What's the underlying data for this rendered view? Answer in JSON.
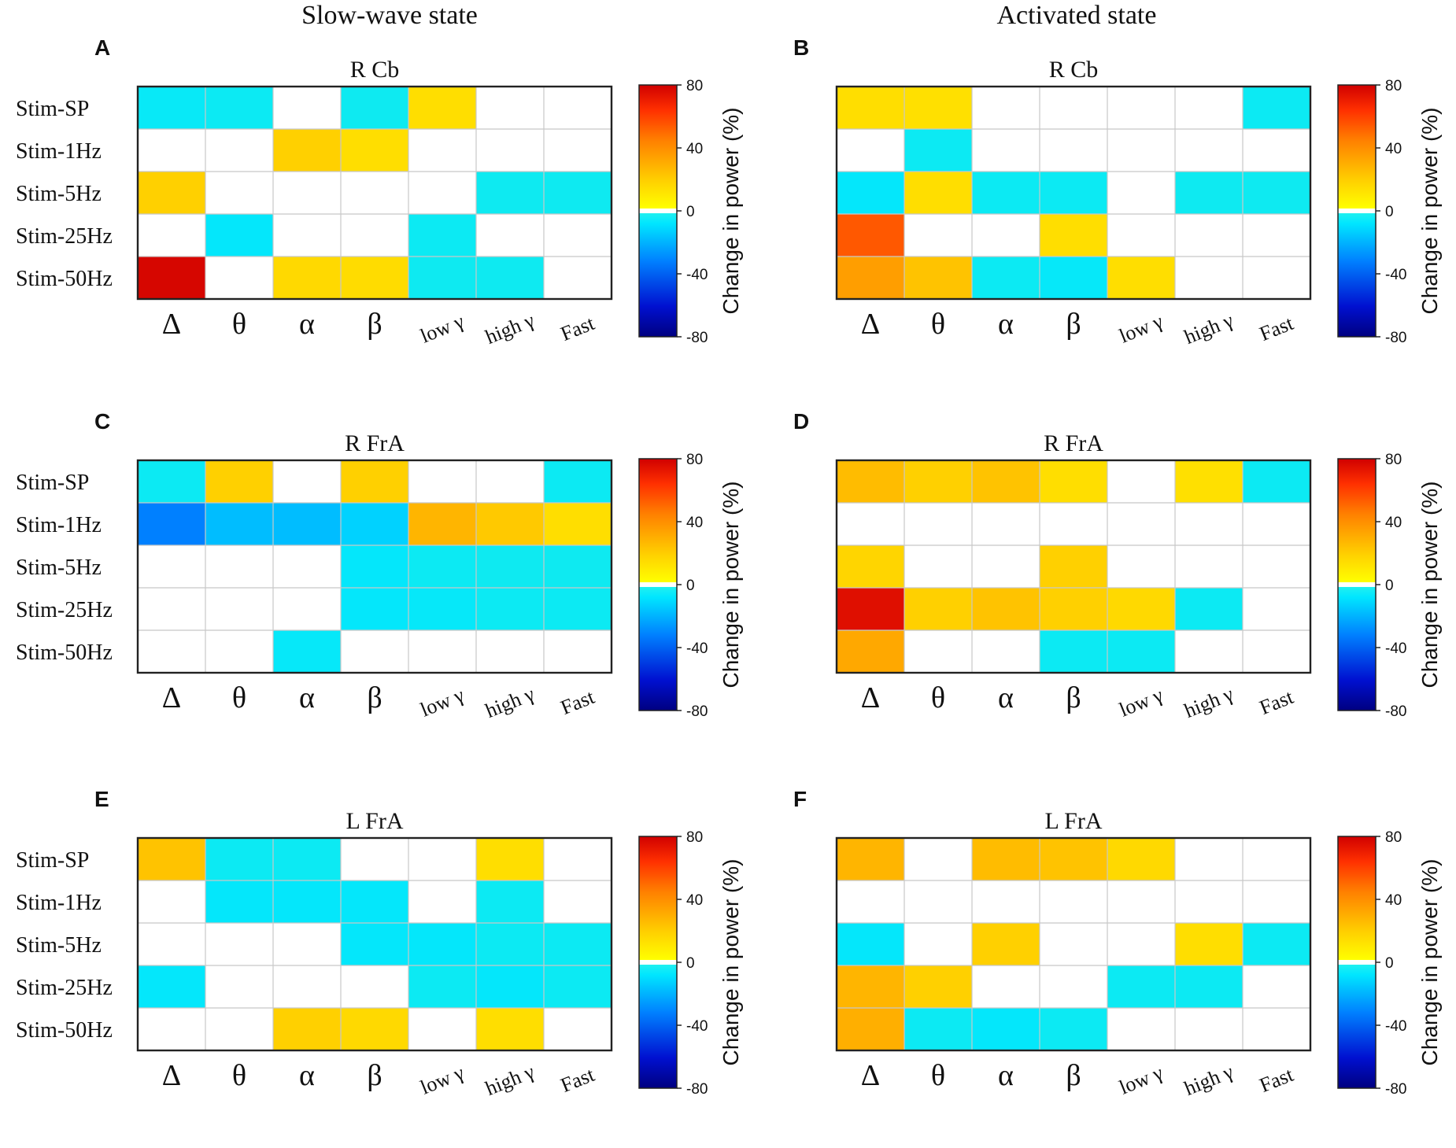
{
  "figure": {
    "state_titles": [
      "Slow-wave state",
      "Activated state"
    ]
  },
  "colorbar": {
    "label": "Change in power (%)",
    "ticks": [
      "80",
      "40",
      "0",
      "-40",
      "-80"
    ],
    "range": [
      -80,
      80
    ]
  },
  "colors": {
    "white": "#ffffff",
    "frame": "#222222",
    "grid": "#c8c8c8"
  },
  "chart_data": [
    {
      "type": "heatmap",
      "panel": "A",
      "state": "Slow-wave state",
      "title": "R Cb",
      "rows": [
        "Stim-SP",
        "Stim-1Hz",
        "Stim-5Hz",
        "Stim-25Hz",
        "Stim-50Hz"
      ],
      "columns": [
        "Δ",
        "θ",
        "α",
        "β",
        "low γ",
        "high γ",
        "Fast"
      ],
      "colorbar_label": "Change in power (%)",
      "colorbar_range": [
        -80,
        80
      ],
      "values": [
        [
          -12,
          -10,
          null,
          -9,
          14,
          null,
          null
        ],
        [
          null,
          null,
          20,
          14,
          null,
          null,
          null
        ],
        [
          20,
          null,
          null,
          null,
          null,
          -9,
          -9
        ],
        [
          null,
          -14,
          null,
          null,
          -10,
          null,
          null
        ],
        [
          78,
          null,
          16,
          15,
          -9,
          -9,
          null
        ]
      ]
    },
    {
      "type": "heatmap",
      "panel": "B",
      "state": "Activated state",
      "title": "R Cb",
      "rows": [
        "Stim-SP",
        "Stim-1Hz",
        "Stim-5Hz",
        "Stim-25Hz",
        "Stim-50Hz"
      ],
      "columns": [
        "Δ",
        "θ",
        "α",
        "β",
        "low γ",
        "high γ",
        "Fast"
      ],
      "colorbar_label": "Change in power (%)",
      "colorbar_range": [
        -80,
        80
      ],
      "values": [
        [
          14,
          13,
          null,
          null,
          null,
          null,
          -10
        ],
        [
          null,
          -10,
          null,
          null,
          null,
          null,
          null
        ],
        [
          -14,
          14,
          -10,
          -10,
          null,
          -9,
          -9
        ],
        [
          54,
          null,
          null,
          14,
          null,
          null,
          null
        ],
        [
          35,
          24,
          -10,
          -13,
          14,
          null,
          null
        ]
      ]
    },
    {
      "type": "heatmap",
      "panel": "C",
      "state": "Slow-wave state",
      "title": "R FrA",
      "rows": [
        "Stim-SP",
        "Stim-1Hz",
        "Stim-5Hz",
        "Stim-25Hz",
        "Stim-50Hz"
      ],
      "columns": [
        "Δ",
        "θ",
        "α",
        "β",
        "low γ",
        "high γ",
        "Fast"
      ],
      "colorbar_label": "Change in power (%)",
      "colorbar_range": [
        -80,
        80
      ],
      "values": [
        [
          -10,
          20,
          null,
          20,
          null,
          null,
          -10
        ],
        [
          -36,
          -24,
          -24,
          -20,
          28,
          22,
          14
        ],
        [
          null,
          null,
          null,
          -14,
          -10,
          -9,
          -9
        ],
        [
          null,
          null,
          null,
          -14,
          -13,
          -10,
          -10
        ],
        [
          null,
          null,
          -13,
          null,
          null,
          null,
          null
        ]
      ]
    },
    {
      "type": "heatmap",
      "panel": "D",
      "state": "Activated state",
      "title": "R FrA",
      "rows": [
        "Stim-SP",
        "Stim-1Hz",
        "Stim-5Hz",
        "Stim-25Hz",
        "Stim-50Hz"
      ],
      "columns": [
        "Δ",
        "θ",
        "α",
        "β",
        "low γ",
        "high γ",
        "Fast"
      ],
      "colorbar_label": "Change in power (%)",
      "colorbar_range": [
        -80,
        80
      ],
      "values": [
        [
          26,
          20,
          24,
          14,
          null,
          13,
          -10
        ],
        [
          null,
          null,
          null,
          null,
          null,
          null,
          null
        ],
        [
          18,
          null,
          null,
          20,
          null,
          null,
          null
        ],
        [
          75,
          20,
          24,
          20,
          16,
          -10,
          null
        ],
        [
          32,
          null,
          null,
          -10,
          -10,
          null,
          null
        ]
      ]
    },
    {
      "type": "heatmap",
      "panel": "E",
      "state": "Slow-wave state",
      "title": "L FrA",
      "rows": [
        "Stim-SP",
        "Stim-1Hz",
        "Stim-5Hz",
        "Stim-25Hz",
        "Stim-50Hz"
      ],
      "columns": [
        "Δ",
        "θ",
        "α",
        "β",
        "low γ",
        "high γ",
        "Fast"
      ],
      "colorbar_label": "Change in power (%)",
      "colorbar_range": [
        -80,
        80
      ],
      "values": [
        [
          24,
          -10,
          -10,
          null,
          null,
          14,
          null
        ],
        [
          null,
          -14,
          -14,
          -14,
          null,
          -10,
          null
        ],
        [
          null,
          null,
          null,
          -14,
          -14,
          -10,
          -10
        ],
        [
          -14,
          null,
          null,
          null,
          -10,
          -14,
          -10
        ],
        [
          null,
          null,
          20,
          16,
          null,
          14,
          null
        ]
      ]
    },
    {
      "type": "heatmap",
      "panel": "F",
      "state": "Activated state",
      "title": "L FrA",
      "rows": [
        "Stim-SP",
        "Stim-1Hz",
        "Stim-5Hz",
        "Stim-25Hz",
        "Stim-50Hz"
      ],
      "columns": [
        "Δ",
        "θ",
        "α",
        "β",
        "low γ",
        "high γ",
        "Fast"
      ],
      "colorbar_label": "Change in power (%)",
      "colorbar_range": [
        -80,
        80
      ],
      "values": [
        [
          28,
          null,
          26,
          24,
          16,
          null,
          null
        ],
        [
          null,
          null,
          null,
          null,
          null,
          null,
          null
        ],
        [
          -14,
          null,
          20,
          null,
          null,
          14,
          -10
        ],
        [
          28,
          20,
          null,
          null,
          -10,
          -10,
          null
        ],
        [
          30,
          -10,
          -14,
          -10,
          null,
          null,
          null
        ]
      ]
    }
  ]
}
